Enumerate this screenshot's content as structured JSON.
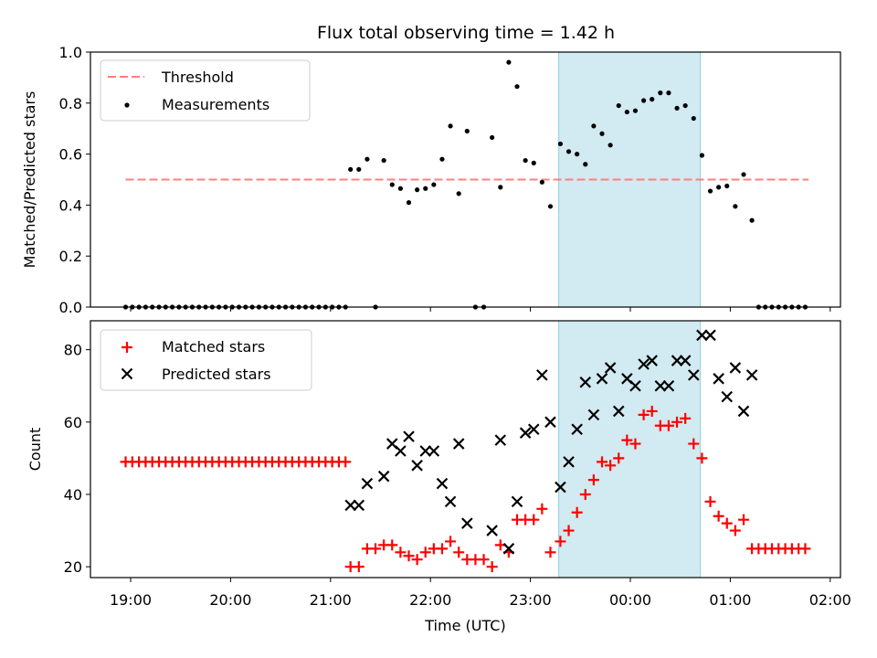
{
  "chart_data": {
    "title": "Flux total observing time = 1.42 h",
    "xlabel": "Time (UTC)",
    "x_ticks": [
      "19:00",
      "20:00",
      "21:00",
      "22:00",
      "23:00",
      "00:00",
      "01:00",
      "02:00"
    ],
    "highlight_window": {
      "start": "23:17",
      "end": "00:42"
    },
    "colors": {
      "threshold": "#ff7f7f",
      "matched": "#ff0000",
      "predicted": "#000000",
      "highlight": "#add8e6",
      "measurement": "#000000"
    },
    "charts": [
      {
        "type": "scatter",
        "panel": "top",
        "ylabel": "Matched/Predicted stars",
        "ylim": [
          0,
          1.0
        ],
        "yticks": [
          "0.0",
          "0.2",
          "0.4",
          "0.6",
          "0.8",
          "1.0"
        ],
        "legend": [
          "Threshold",
          "Measurements"
        ],
        "legend_position": "upper-left",
        "threshold": {
          "name": "Threshold",
          "y": 0.5,
          "x_range": [
            "18:57",
            "01:47"
          ]
        },
        "measurements": {
          "name": "Measurements",
          "points": [
            [
              "18:57",
              0
            ],
            [
              "19:01",
              0
            ],
            [
              "19:05",
              0
            ],
            [
              "19:09",
              0
            ],
            [
              "19:13",
              0
            ],
            [
              "19:17",
              0
            ],
            [
              "19:21",
              0
            ],
            [
              "19:25",
              0
            ],
            [
              "19:29",
              0
            ],
            [
              "19:33",
              0
            ],
            [
              "19:37",
              0
            ],
            [
              "19:41",
              0
            ],
            [
              "19:45",
              0
            ],
            [
              "19:49",
              0
            ],
            [
              "19:53",
              0
            ],
            [
              "19:57",
              0
            ],
            [
              "20:01",
              0
            ],
            [
              "20:05",
              0
            ],
            [
              "20:09",
              0
            ],
            [
              "20:13",
              0
            ],
            [
              "20:17",
              0
            ],
            [
              "20:21",
              0
            ],
            [
              "20:25",
              0
            ],
            [
              "20:29",
              0
            ],
            [
              "20:33",
              0
            ],
            [
              "20:37",
              0
            ],
            [
              "20:41",
              0
            ],
            [
              "20:45",
              0
            ],
            [
              "20:49",
              0
            ],
            [
              "20:53",
              0
            ],
            [
              "20:57",
              0
            ],
            [
              "21:01",
              0
            ],
            [
              "21:05",
              0
            ],
            [
              "21:09",
              0
            ],
            [
              "21:12",
              0.54
            ],
            [
              "21:17",
              0.54
            ],
            [
              "21:22",
              0.58
            ],
            [
              "21:27",
              0
            ],
            [
              "21:32",
              0.575
            ],
            [
              "21:37",
              0.48
            ],
            [
              "21:42",
              0.465
            ],
            [
              "21:47",
              0.41
            ],
            [
              "21:52",
              0.46
            ],
            [
              "21:57",
              0.465
            ],
            [
              "22:02",
              0.48
            ],
            [
              "22:07",
              0.58
            ],
            [
              "22:12",
              0.71
            ],
            [
              "22:17",
              0.445
            ],
            [
              "22:22",
              0.69
            ],
            [
              "22:27",
              0
            ],
            [
              "22:32",
              0
            ],
            [
              "22:37",
              0.665
            ],
            [
              "22:42",
              0.47
            ],
            [
              "22:47",
              0.96
            ],
            [
              "22:52",
              0.865
            ],
            [
              "22:57",
              0.575
            ],
            [
              "23:02",
              0.565
            ],
            [
              "23:07",
              0.49
            ],
            [
              "23:12",
              0.395
            ],
            [
              "23:18",
              0.64
            ],
            [
              "23:23",
              0.61
            ],
            [
              "23:28",
              0.6
            ],
            [
              "23:33",
              0.56
            ],
            [
              "23:38",
              0.71
            ],
            [
              "23:43",
              0.68
            ],
            [
              "23:48",
              0.635
            ],
            [
              "23:53",
              0.79
            ],
            [
              "23:58",
              0.765
            ],
            [
              "00:03",
              0.77
            ],
            [
              "00:08",
              0.81
            ],
            [
              "00:13",
              0.815
            ],
            [
              "00:18",
              0.84
            ],
            [
              "00:23",
              0.84
            ],
            [
              "00:28",
              0.78
            ],
            [
              "00:33",
              0.79
            ],
            [
              "00:38",
              0.74
            ],
            [
              "00:43",
              0.595
            ],
            [
              "00:48",
              0.455
            ],
            [
              "00:53",
              0.47
            ],
            [
              "00:58",
              0.475
            ],
            [
              "01:03",
              0.395
            ],
            [
              "01:08",
              0.52
            ],
            [
              "01:13",
              0.34
            ],
            [
              "01:17",
              0
            ],
            [
              "01:21",
              0
            ],
            [
              "01:25",
              0
            ],
            [
              "01:29",
              0
            ],
            [
              "01:33",
              0
            ],
            [
              "01:37",
              0
            ],
            [
              "01:41",
              0
            ],
            [
              "01:45",
              0
            ]
          ]
        }
      },
      {
        "type": "scatter",
        "panel": "bottom",
        "ylabel": "Count",
        "ylim": [
          17,
          88
        ],
        "yticks": [
          "20",
          "40",
          "60",
          "80"
        ],
        "legend": [
          "Matched stars",
          "Predicted stars"
        ],
        "legend_position": "upper-left",
        "series": [
          {
            "name": "Matched stars",
            "marker": "plus",
            "points": [
              [
                "18:57",
                49
              ],
              [
                "19:01",
                49
              ],
              [
                "19:05",
                49
              ],
              [
                "19:09",
                49
              ],
              [
                "19:13",
                49
              ],
              [
                "19:17",
                49
              ],
              [
                "19:21",
                49
              ],
              [
                "19:25",
                49
              ],
              [
                "19:29",
                49
              ],
              [
                "19:33",
                49
              ],
              [
                "19:37",
                49
              ],
              [
                "19:41",
                49
              ],
              [
                "19:45",
                49
              ],
              [
                "19:49",
                49
              ],
              [
                "19:53",
                49
              ],
              [
                "19:57",
                49
              ],
              [
                "20:01",
                49
              ],
              [
                "20:05",
                49
              ],
              [
                "20:09",
                49
              ],
              [
                "20:13",
                49
              ],
              [
                "20:17",
                49
              ],
              [
                "20:21",
                49
              ],
              [
                "20:25",
                49
              ],
              [
                "20:29",
                49
              ],
              [
                "20:33",
                49
              ],
              [
                "20:37",
                49
              ],
              [
                "20:41",
                49
              ],
              [
                "20:45",
                49
              ],
              [
                "20:49",
                49
              ],
              [
                "20:53",
                49
              ],
              [
                "20:57",
                49
              ],
              [
                "21:01",
                49
              ],
              [
                "21:05",
                49
              ],
              [
                "21:09",
                49
              ],
              [
                "21:12",
                20
              ],
              [
                "21:17",
                20
              ],
              [
                "21:22",
                25
              ],
              [
                "21:27",
                25
              ],
              [
                "21:32",
                26
              ],
              [
                "21:37",
                26
              ],
              [
                "21:42",
                24
              ],
              [
                "21:47",
                23
              ],
              [
                "21:52",
                22
              ],
              [
                "21:57",
                24
              ],
              [
                "22:02",
                25
              ],
              [
                "22:07",
                25
              ],
              [
                "22:12",
                27
              ],
              [
                "22:17",
                24
              ],
              [
                "22:22",
                22
              ],
              [
                "22:27",
                22
              ],
              [
                "22:32",
                22
              ],
              [
                "22:37",
                20
              ],
              [
                "22:42",
                26
              ],
              [
                "22:47",
                24
              ],
              [
                "22:52",
                33
              ],
              [
                "22:57",
                33
              ],
              [
                "23:02",
                33
              ],
              [
                "23:07",
                36
              ],
              [
                "23:12",
                24
              ],
              [
                "23:18",
                27
              ],
              [
                "23:23",
                30
              ],
              [
                "23:28",
                35
              ],
              [
                "23:33",
                40
              ],
              [
                "23:38",
                44
              ],
              [
                "23:43",
                49
              ],
              [
                "23:48",
                48
              ],
              [
                "23:53",
                50
              ],
              [
                "23:58",
                55
              ],
              [
                "00:03",
                54
              ],
              [
                "00:08",
                62
              ],
              [
                "00:13",
                63
              ],
              [
                "00:18",
                59
              ],
              [
                "00:23",
                59
              ],
              [
                "00:28",
                60
              ],
              [
                "00:33",
                61
              ],
              [
                "00:38",
                54
              ],
              [
                "00:43",
                50
              ],
              [
                "00:48",
                38
              ],
              [
                "00:53",
                34
              ],
              [
                "00:58",
                32
              ],
              [
                "01:03",
                30
              ],
              [
                "01:08",
                33
              ],
              [
                "01:13",
                25
              ],
              [
                "01:17",
                25
              ],
              [
                "01:21",
                25
              ],
              [
                "01:25",
                25
              ],
              [
                "01:29",
                25
              ],
              [
                "01:33",
                25
              ],
              [
                "01:37",
                25
              ],
              [
                "01:41",
                25
              ],
              [
                "01:45",
                25
              ]
            ]
          },
          {
            "name": "Predicted stars",
            "marker": "x",
            "points": [
              [
                "21:12",
                37
              ],
              [
                "21:17",
                37
              ],
              [
                "21:22",
                43
              ],
              [
                "21:32",
                45
              ],
              [
                "21:37",
                54
              ],
              [
                "21:42",
                52
              ],
              [
                "21:47",
                56
              ],
              [
                "21:52",
                48
              ],
              [
                "21:57",
                52
              ],
              [
                "22:02",
                52
              ],
              [
                "22:07",
                43
              ],
              [
                "22:12",
                38
              ],
              [
                "22:17",
                54
              ],
              [
                "22:22",
                32
              ],
              [
                "22:37",
                30
              ],
              [
                "22:42",
                55
              ],
              [
                "22:47",
                25
              ],
              [
                "22:52",
                38
              ],
              [
                "22:57",
                57
              ],
              [
                "23:02",
                58
              ],
              [
                "23:07",
                73
              ],
              [
                "23:12",
                60
              ],
              [
                "23:18",
                42
              ],
              [
                "23:23",
                49
              ],
              [
                "23:28",
                58
              ],
              [
                "23:33",
                71
              ],
              [
                "23:38",
                62
              ],
              [
                "23:43",
                72
              ],
              [
                "23:48",
                75
              ],
              [
                "23:53",
                63
              ],
              [
                "23:58",
                72
              ],
              [
                "00:03",
                70
              ],
              [
                "00:08",
                76
              ],
              [
                "00:13",
                77
              ],
              [
                "00:18",
                70
              ],
              [
                "00:23",
                70
              ],
              [
                "00:28",
                77
              ],
              [
                "00:33",
                77
              ],
              [
                "00:38",
                73
              ],
              [
                "00:43",
                84
              ],
              [
                "00:48",
                84
              ],
              [
                "00:53",
                72
              ],
              [
                "00:58",
                67
              ],
              [
                "01:03",
                75
              ],
              [
                "01:08",
                63
              ],
              [
                "01:13",
                73
              ]
            ]
          }
        ]
      }
    ]
  }
}
